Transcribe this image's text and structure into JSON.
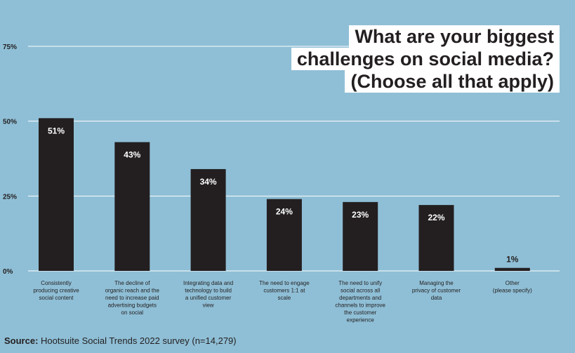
{
  "title_lines": [
    "What are your biggest",
    "challenges on social media?",
    "(Choose all that apply)"
  ],
  "source": {
    "label": "Source:",
    "text": "Hootsuite Social Trends 2022 survey (n=14,279)"
  },
  "colors": {
    "background": "#8fbfd6",
    "bar": "#231f20",
    "bar_label": "#ffffff",
    "grid": "#ffffff",
    "text": "#231f20"
  },
  "chart_data": {
    "type": "bar",
    "categories": [
      [
        "Consistently",
        "producing creative",
        "social content"
      ],
      [
        "The decline of",
        "organic reach and the",
        "need to increase paid",
        "advertising budgets",
        "on social"
      ],
      [
        "Integrating data and",
        "technology to build",
        "a unified customer",
        "view"
      ],
      [
        "The need to engage",
        "customers 1:1 at",
        "scale"
      ],
      [
        "The need to unify",
        "social across all",
        "departments and",
        "channels to improve",
        "the customer",
        "experience"
      ],
      [
        "Managing the",
        "privacy of customer",
        "data"
      ],
      [
        "Other",
        "(please specify)"
      ]
    ],
    "values": [
      51,
      43,
      34,
      24,
      23,
      22,
      1
    ],
    "data_labels": [
      "51%",
      "43%",
      "34%",
      "24%",
      "23%",
      "22%",
      "1%"
    ],
    "yticks": [
      0,
      25,
      50,
      75
    ],
    "ytick_labels": [
      "0%",
      "25%",
      "50%",
      "75%"
    ],
    "ylim": [
      0,
      75
    ],
    "grid": true
  }
}
